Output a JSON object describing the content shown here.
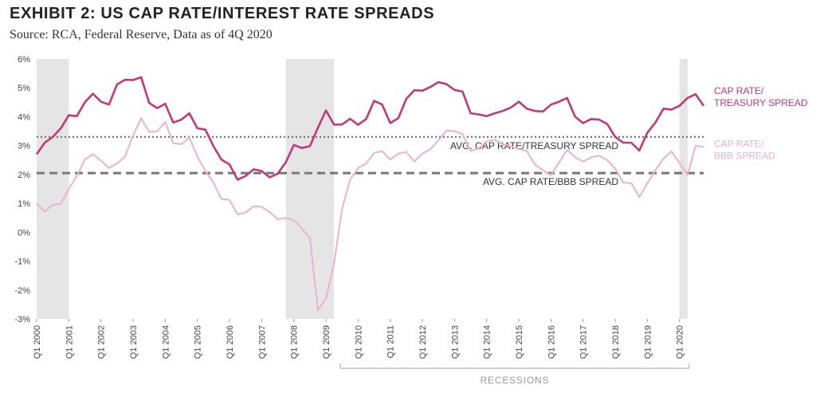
{
  "chart_data": {
    "type": "line",
    "title": "EXHIBIT 2: US CAP RATE/INTEREST RATE SPREADS",
    "subtitle": "Source: RCA, Federal Reserve, Data as of 4Q 2020",
    "y_ticks": [
      "6%",
      "5%",
      "4%",
      "3%",
      "2%",
      "1%",
      "0%",
      "-1%",
      "-2%",
      "-3%"
    ],
    "ylim": [
      -3,
      6
    ],
    "x_tick_labels": [
      "Q1 2000",
      "Q1 2001",
      "Q1 2002",
      "Q1 2003",
      "Q1 2004",
      "Q1 2005",
      "Q1 2006",
      "Q1 2007",
      "Q1 2008",
      "Q1 2009",
      "Q1 2010",
      "Q1 2011",
      "Q1 2012",
      "Q1 2013",
      "Q1 2014",
      "Q1 2015",
      "Q1 2016",
      "Q1 2017",
      "Q1 2018",
      "Q1 2019",
      "Q1 2020"
    ],
    "recessions_label": "RECESSIONS",
    "recessions": [
      [
        "2000Q1",
        "2001Q1"
      ],
      [
        "2007Q4",
        "2009Q2"
      ],
      [
        "2020Q1",
        "2020Q2"
      ]
    ],
    "x_start": "2000Q1",
    "x_end": "2020Q4",
    "series": [
      {
        "name": "CAP RATE/\nTREASURY SPREAD",
        "color": "#c0397a",
        "values": [
          2.7,
          3.1,
          3.3,
          3.6,
          4.05,
          4.02,
          4.5,
          4.8,
          4.52,
          4.42,
          5.12,
          5.28,
          5.27,
          5.37,
          4.48,
          4.3,
          4.45,
          3.8,
          3.9,
          4.12,
          3.6,
          3.55,
          2.98,
          2.52,
          2.35,
          1.82,
          1.95,
          2.18,
          2.12,
          1.9,
          2.03,
          2.42,
          3.02,
          2.92,
          2.98,
          3.62,
          4.22,
          3.73,
          3.73,
          3.93,
          3.72,
          3.92,
          4.55,
          4.42,
          3.78,
          3.95,
          4.62,
          4.92,
          4.9,
          5.03,
          5.2,
          5.13,
          4.93,
          4.87,
          4.12,
          4.08,
          4.02,
          4.12,
          4.2,
          4.32,
          4.52,
          4.28,
          4.2,
          4.18,
          4.42,
          4.52,
          4.65,
          4.0,
          3.78,
          3.92,
          3.9,
          3.75,
          3.3,
          3.1,
          3.1,
          2.83,
          3.45,
          3.8,
          4.28,
          4.25,
          4.38,
          4.65,
          4.78,
          4.38
        ]
      },
      {
        "name": "CAP RATE/\nBBB SPREAD",
        "color": "#eab2cf",
        "values": [
          1.0,
          0.72,
          0.95,
          0.98,
          1.5,
          1.95,
          2.52,
          2.7,
          2.48,
          2.22,
          2.38,
          2.62,
          3.35,
          3.95,
          3.48,
          3.5,
          3.82,
          3.08,
          3.05,
          3.28,
          2.62,
          2.12,
          1.72,
          1.15,
          1.12,
          0.62,
          0.68,
          0.9,
          0.88,
          0.7,
          0.45,
          0.5,
          0.42,
          0.12,
          -0.2,
          -2.7,
          -2.3,
          -1.1,
          0.8,
          1.82,
          2.22,
          2.38,
          2.75,
          2.8,
          2.52,
          2.72,
          2.78,
          2.45,
          2.72,
          2.88,
          3.18,
          3.52,
          3.5,
          3.4,
          2.82,
          2.9,
          3.15,
          3.2,
          3.05,
          2.98,
          2.88,
          2.82,
          2.35,
          2.15,
          1.98,
          2.42,
          2.85,
          2.6,
          2.45,
          2.6,
          2.65,
          2.5,
          2.2,
          1.72,
          1.7,
          1.22,
          1.7,
          2.15,
          2.55,
          2.8,
          2.4,
          1.98,
          3.0,
          2.95
        ]
      }
    ],
    "reference_lines": [
      {
        "label": "AVG. CAP RATE/TREASURY SPREAD",
        "value": 3.3,
        "style": "dotted"
      },
      {
        "label": "AVG. CAP RATE/BBB SPREAD",
        "value": 2.05,
        "style": "dashed"
      }
    ]
  }
}
